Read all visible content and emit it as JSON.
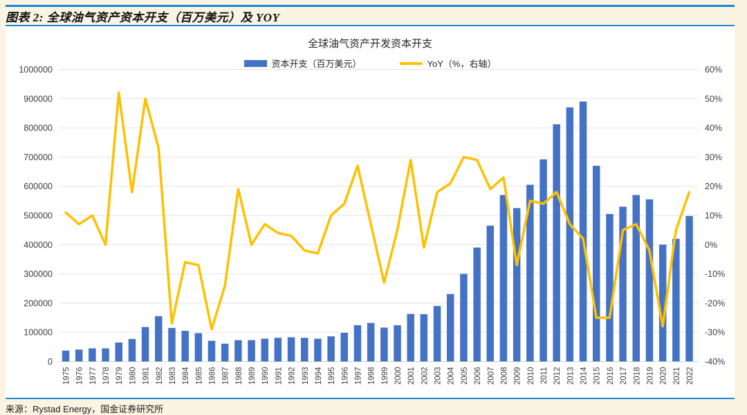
{
  "header": {
    "title": "图表 2: 全球油气资产资本开支（百万美元）及 YOY"
  },
  "footer": {
    "source": "来源：Rystad Energy，国金证券研究所"
  },
  "colors": {
    "bar": "#4472c4",
    "line": "#ffc000",
    "rule_blue": "#1787d8",
    "page_bg": "#fbf4e3",
    "panel_bg": "#ffffff",
    "grid": "#e3e3e3",
    "axis_text": "#3c3c3c"
  },
  "chart_data": {
    "type": "bar",
    "title": "全球油气资产开发资本开支",
    "legend_position": "top",
    "grid": true,
    "legend": [
      {
        "label": "资本开支（百万美元）",
        "color": "#4472c4",
        "kind": "bar"
      },
      {
        "label": "YoY（%，右轴）",
        "color": "#ffc000",
        "kind": "line"
      }
    ],
    "categories": [
      "1975",
      "1976",
      "1977",
      "1978",
      "1979",
      "1980",
      "1981",
      "1982",
      "1983",
      "1984",
      "1985",
      "1986",
      "1987",
      "1988",
      "1989",
      "1990",
      "1991",
      "1992",
      "1993",
      "1994",
      "1995",
      "1996",
      "1997",
      "1998",
      "1999",
      "2000",
      "2001",
      "2002",
      "2003",
      "2004",
      "2005",
      "2006",
      "2007",
      "2008",
      "2009",
      "2010",
      "2011",
      "2012",
      "2013",
      "2014",
      "2015",
      "2016",
      "2017",
      "2018",
      "2019",
      "2020",
      "2021",
      "2022"
    ],
    "series": [
      {
        "name": "资本开支（百万美元）",
        "type": "bar",
        "axis": "left",
        "values": [
          37000,
          41000,
          45000,
          45000,
          65000,
          77000,
          118000,
          155000,
          115000,
          105000,
          97000,
          71000,
          61000,
          73000,
          73000,
          78000,
          81000,
          83000,
          81000,
          78000,
          86000,
          98000,
          124000,
          132000,
          116000,
          124000,
          163000,
          162000,
          190000,
          231000,
          300000,
          390000,
          465000,
          570000,
          525000,
          605000,
          692000,
          812000,
          870000,
          890000,
          670000,
          505000,
          530000,
          570000,
          555000,
          400000,
          420000,
          498000
        ]
      },
      {
        "name": "YoY（%，右轴）",
        "type": "line",
        "axis": "right",
        "values": [
          11,
          7,
          10,
          0,
          52,
          18,
          50,
          33,
          -27,
          -6,
          -7,
          -29,
          -14,
          19,
          0,
          7,
          4,
          3,
          -2,
          -3,
          10,
          14,
          27,
          7,
          -13,
          5,
          29,
          -1,
          18,
          21,
          30,
          29,
          19,
          23,
          -7,
          15,
          14,
          18,
          7,
          2,
          -25,
          -25,
          5,
          7,
          -2,
          -28,
          5,
          18
        ]
      }
    ],
    "left_axis": {
      "min": 0,
      "max": 1000000,
      "step": 100000,
      "labels": [
        "0",
        "100000",
        "200000",
        "300000",
        "400000",
        "500000",
        "600000",
        "700000",
        "800000",
        "900000",
        "1000000"
      ]
    },
    "right_axis": {
      "min": -40,
      "max": 60,
      "step": 10,
      "suffix": "%",
      "labels": [
        "-40%",
        "-30%",
        "-20%",
        "-10%",
        "0%",
        "10%",
        "20%",
        "30%",
        "40%",
        "50%",
        "60%"
      ]
    }
  }
}
